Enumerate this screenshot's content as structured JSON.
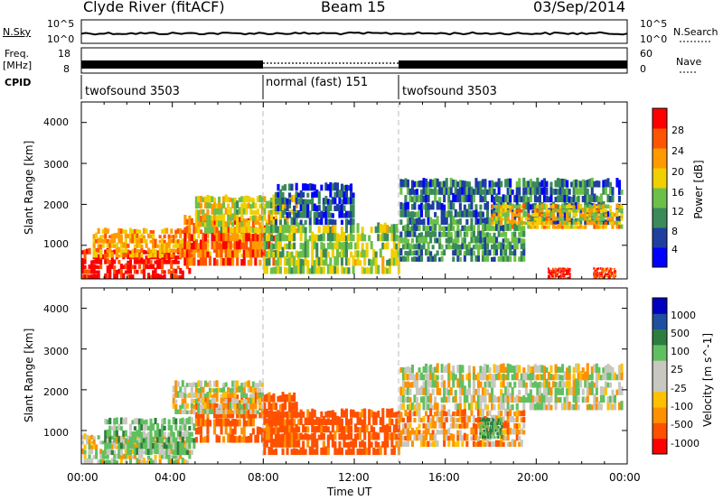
{
  "header": {
    "station": "Clyde River (fitACF)",
    "beam": "Beam 15",
    "date": "03/Sep/2014"
  },
  "strip_labels": {
    "nsky": "N.Sky",
    "freq": "Freq.",
    "mhz": "[MHz]",
    "cpid": "CPID",
    "nsearch": "N.Search",
    "nave": "Nave"
  },
  "strip_ticks": {
    "noise_top": "10^5",
    "noise_bottom": "10^0",
    "freq_top": "18",
    "freq_bottom": "8",
    "nave_top": "60",
    "nave_bottom": "0"
  },
  "cpid_segments": [
    {
      "label": "twofsound 3503",
      "start_h": 0,
      "end_h": 8
    },
    {
      "label": "normal (fast) 151",
      "start_h": 8,
      "end_h": 14
    },
    {
      "label": "twofsound 3503",
      "start_h": 14,
      "end_h": 24
    }
  ],
  "axes": {
    "xlabel": "Time UT",
    "ylabel": "Slant Range [km]",
    "x_ticks": [
      "00:00",
      "04:00",
      "08:00",
      "12:00",
      "16:00",
      "20:00",
      "00:00"
    ],
    "y_ticks": [
      "1000",
      "2000",
      "3000",
      "4000"
    ]
  },
  "colors": {
    "power": [
      "#0000ff",
      "#1e3fa0",
      "#3a8a5a",
      "#6cc04a",
      "#f0d000",
      "#ff9a00",
      "#ff5500",
      "#ff0000"
    ],
    "velocity": [
      "#ff0000",
      "#ff5000",
      "#ff9000",
      "#ffc000",
      "#c8c8c0",
      "#c8c8c0",
      "#60c060",
      "#2e7d40",
      "#1e4fa0",
      "#0000c0"
    ]
  },
  "chart_data": [
    {
      "type": "heatmap",
      "name": "power",
      "xlabel": "Time UT",
      "ylabel": "Slant Range [km]",
      "xlim": [
        0,
        24
      ],
      "ylim": [
        180,
        4500
      ],
      "colorbar_label": "Power [dB]",
      "colorbar_ticks": [
        "4",
        "8",
        "12",
        "16",
        "20",
        "24",
        "28"
      ],
      "colorbar_range": [
        0,
        30
      ],
      "regions": [
        {
          "t": [
            0.0,
            4.8
          ],
          "r": [
            180,
            900
          ],
          "v": 28
        },
        {
          "t": [
            0.5,
            7.5
          ],
          "r": [
            700,
            1400
          ],
          "v": 20
        },
        {
          "t": [
            4.5,
            8.5
          ],
          "r": [
            500,
            1700
          ],
          "v": 24
        },
        {
          "t": [
            5.0,
            9.5
          ],
          "r": [
            1300,
            2200
          ],
          "v": 16
        },
        {
          "t": [
            8.0,
            14.0
          ],
          "r": [
            300,
            1500
          ],
          "v": 14
        },
        {
          "t": [
            8.5,
            12.0
          ],
          "r": [
            1500,
            2500
          ],
          "v": 6
        },
        {
          "t": [
            14.0,
            23.8
          ],
          "r": [
            1500,
            2600
          ],
          "v": 8
        },
        {
          "t": [
            18.0,
            23.8
          ],
          "r": [
            1400,
            2000
          ],
          "v": 18
        },
        {
          "t": [
            14.0,
            19.5
          ],
          "r": [
            600,
            1500
          ],
          "v": 10
        },
        {
          "t": [
            20.5,
            21.5
          ],
          "r": [
            180,
            450
          ],
          "v": 28
        },
        {
          "t": [
            22.5,
            23.5
          ],
          "r": [
            180,
            450
          ],
          "v": 26
        }
      ]
    },
    {
      "type": "heatmap",
      "name": "velocity",
      "xlabel": "Time UT",
      "ylabel": "Slant Range [km]",
      "xlim": [
        0,
        24
      ],
      "ylim": [
        180,
        4500
      ],
      "colorbar_label": "Velocity [m s^-1]",
      "colorbar_ticks": [
        "-1000",
        "-500",
        "-100",
        "-25",
        "25",
        "100",
        "500",
        "1000"
      ],
      "colorbar_range": [
        -1000,
        1000
      ],
      "regions": [
        {
          "t": [
            0.0,
            4.8
          ],
          "r": [
            180,
            900
          ],
          "v": 0
        },
        {
          "t": [
            1.0,
            5.0
          ],
          "r": [
            400,
            1300
          ],
          "v": 60
        },
        {
          "t": [
            5.0,
            9.5
          ],
          "r": [
            700,
            1900
          ],
          "v": -120
        },
        {
          "t": [
            4.0,
            8.0
          ],
          "r": [
            1400,
            2200
          ],
          "v": 0
        },
        {
          "t": [
            8.0,
            14.0
          ],
          "r": [
            400,
            1500
          ],
          "v": -150
        },
        {
          "t": [
            14.0,
            23.8
          ],
          "r": [
            1500,
            2600
          ],
          "v": 0
        },
        {
          "t": [
            14.0,
            19.5
          ],
          "r": [
            600,
            1500
          ],
          "v": -60
        },
        {
          "t": [
            17.5,
            18.5
          ],
          "r": [
            800,
            1300
          ],
          "v": 120
        }
      ]
    }
  ]
}
